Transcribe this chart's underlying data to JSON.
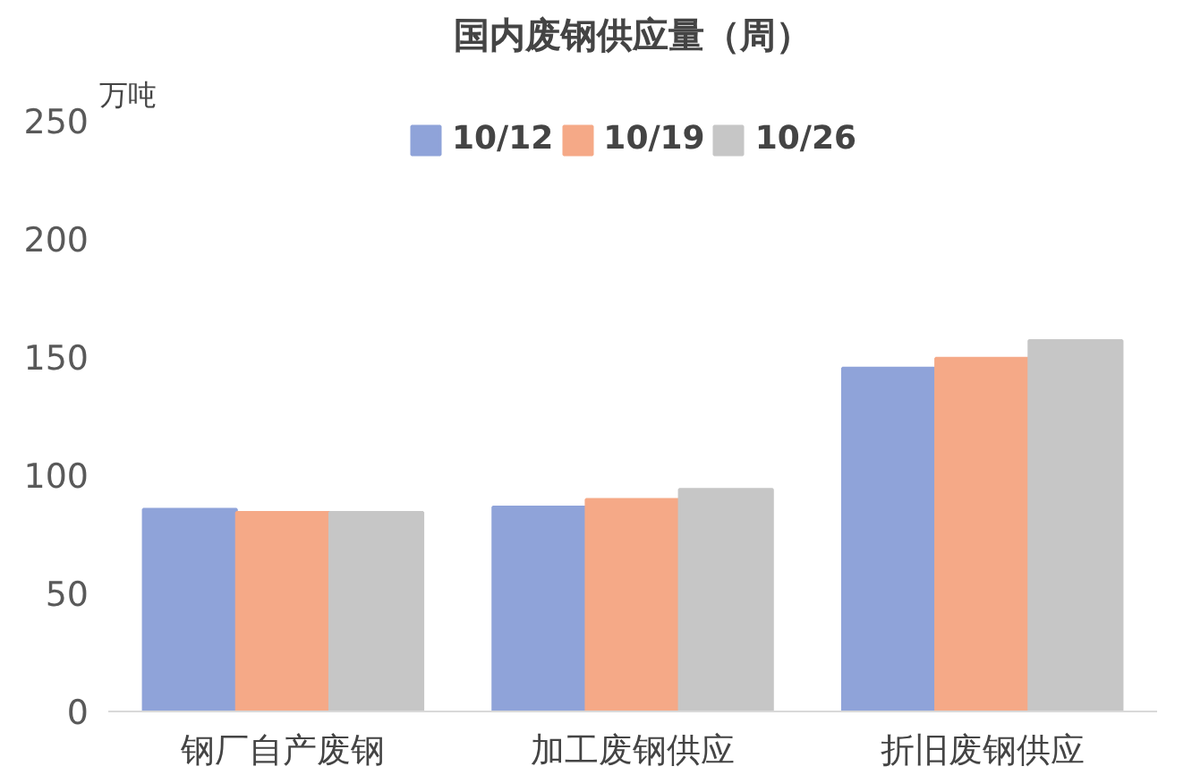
{
  "chart_data": {
    "type": "bar",
    "title": "国内废钢供应量（周）",
    "ylabel": "万吨",
    "categories": [
      "钢厂自产废钢",
      "加工废钢供应",
      "折旧废钢供应"
    ],
    "series": [
      {
        "name": "10/12",
        "color": "#8fa3d9",
        "values": [
          85.6,
          86.6,
          145.4
        ]
      },
      {
        "name": "10/19",
        "color": "#f5a987",
        "values": [
          84.3,
          89.8,
          149.5
        ]
      },
      {
        "name": "10/26",
        "color": "#c6c6c6",
        "values": [
          84.3,
          94,
          157
        ]
      }
    ],
    "ylim": [
      0,
      250
    ],
    "yticks": [
      0,
      50,
      100,
      150,
      200,
      250
    ],
    "grid": false,
    "legend": "top"
  }
}
